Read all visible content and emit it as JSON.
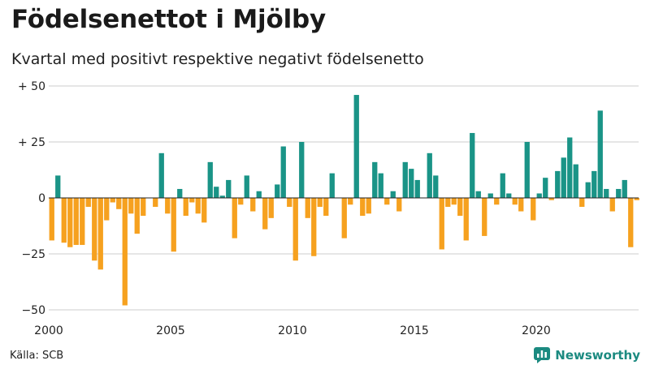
{
  "header": {
    "title": "Födelsenettot i Mjölby",
    "subtitle": "Kvartal med positivt respektive negativt födelsenetto"
  },
  "footer": {
    "source": "Källa: SCB",
    "brand": "Newsworthy",
    "brand_icon": "bar-chart-logo-icon"
  },
  "colors": {
    "positive": "#1a9487",
    "negative": "#f6a11f",
    "grid": "#cccccc",
    "brand": "#1b8a80"
  },
  "chart_data": {
    "type": "bar",
    "title": "Födelsenettot i Mjölby",
    "subtitle": "Kvartal med positivt respektive negativt födelsenetto",
    "xlabel": "",
    "ylabel": "",
    "ylim": [
      -50,
      50
    ],
    "yticks": [
      {
        "value": 50,
        "label": "+ 50"
      },
      {
        "value": 25,
        "label": "+ 25"
      },
      {
        "value": 0,
        "label": "0"
      },
      {
        "value": -25,
        "label": "−25"
      },
      {
        "value": -50,
        "label": "−50"
      }
    ],
    "xticks": [
      {
        "value": 2000,
        "label": "2000"
      },
      {
        "value": 2005,
        "label": "2005"
      },
      {
        "value": 2010,
        "label": "2010"
      },
      {
        "value": 2015,
        "label": "2015"
      },
      {
        "value": 2020,
        "label": "2020"
      }
    ],
    "start_year": 2000,
    "quarters_per_year": 4,
    "grid": true,
    "series": [
      {
        "name": "Födelsenetto per kvartal",
        "values": [
          -19,
          10,
          -20,
          -22,
          -21,
          -21,
          -4,
          -28,
          -32,
          -10,
          -2,
          -5,
          -48,
          -7,
          -16,
          -8,
          0,
          -4,
          20,
          -7,
          -24,
          4,
          -8,
          -2,
          -7,
          -11,
          16,
          5,
          1,
          8,
          -18,
          -3,
          10,
          -6,
          3,
          -14,
          -9,
          6,
          23,
          -4,
          -28,
          25,
          -9,
          -26,
          -4,
          -8,
          11,
          0,
          -18,
          -3,
          46,
          -8,
          -7,
          16,
          11,
          -3,
          3,
          -6,
          16,
          13,
          8,
          0,
          20,
          10,
          -23,
          -4,
          -3,
          -8,
          -19,
          29,
          3,
          -17,
          2,
          -3,
          11,
          2,
          -3,
          -6,
          25,
          -10,
          2,
          9,
          -1,
          12,
          18,
          27,
          15,
          -4,
          7,
          12,
          39,
          4,
          -6,
          4,
          8,
          -22,
          -1
        ]
      }
    ]
  }
}
